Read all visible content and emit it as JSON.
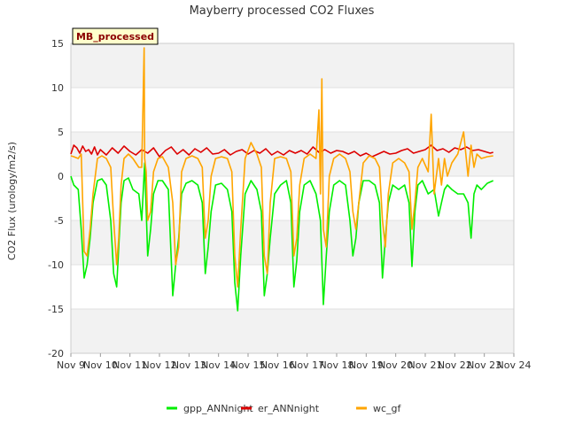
{
  "chart_data": {
    "type": "line",
    "title": "Mayberry processed CO2 Fluxes",
    "xlabel": "",
    "ylabel": "CO2 Flux (urology/m2/s)",
    "badge": "MB_processed",
    "ylim": [
      -20,
      15
    ],
    "xlim": [
      9,
      24
    ],
    "y_ticks": [
      -20,
      -15,
      -10,
      -5,
      0,
      5,
      10,
      15
    ],
    "x_ticks": [
      {
        "value": 9,
        "label": "Nov 9"
      },
      {
        "value": 10,
        "label": "Nov 10"
      },
      {
        "value": 11,
        "label": "Nov 11"
      },
      {
        "value": 12,
        "label": "Nov 12"
      },
      {
        "value": 13,
        "label": "Nov 13"
      },
      {
        "value": 14,
        "label": "Nov 14"
      },
      {
        "value": 15,
        "label": "Nov 15"
      },
      {
        "value": 16,
        "label": "Nov 16"
      },
      {
        "value": 17,
        "label": "Nov 17"
      },
      {
        "value": 18,
        "label": "Nov 18"
      },
      {
        "value": 19,
        "label": "Nov 19"
      },
      {
        "value": 20,
        "label": "Nov 20"
      },
      {
        "value": 21,
        "label": "Nov 21"
      },
      {
        "value": 22,
        "label": "Nov 22"
      },
      {
        "value": 23,
        "label": "Nov 23"
      },
      {
        "value": 24,
        "label": "Nov 24"
      }
    ],
    "grid": "horizontal bands",
    "legend_position": "bottom",
    "series": [
      {
        "name": "gpp_ANNnight",
        "color": "#00ee00",
        "x": [
          9.0,
          9.1,
          9.25,
          9.35,
          9.45,
          9.55,
          9.65,
          9.75,
          9.9,
          10.05,
          10.2,
          10.35,
          10.45,
          10.55,
          10.62,
          10.7,
          10.8,
          10.95,
          11.1,
          11.3,
          11.4,
          11.5,
          11.6,
          11.7,
          11.8,
          11.95,
          12.1,
          12.3,
          12.45,
          12.55,
          12.65,
          12.75,
          12.9,
          13.1,
          13.3,
          13.45,
          13.55,
          13.65,
          13.75,
          13.9,
          14.1,
          14.3,
          14.45,
          14.55,
          14.65,
          14.75,
          14.9,
          15.1,
          15.3,
          15.45,
          15.55,
          15.65,
          15.75,
          15.9,
          16.1,
          16.3,
          16.45,
          16.55,
          16.65,
          16.75,
          16.9,
          17.1,
          17.3,
          17.45,
          17.55,
          17.65,
          17.75,
          17.9,
          18.1,
          18.3,
          18.45,
          18.55,
          18.65,
          18.75,
          18.9,
          19.1,
          19.3,
          19.45,
          19.55,
          19.65,
          19.75,
          19.9,
          20.1,
          20.3,
          20.45,
          20.55,
          20.65,
          20.75,
          20.9,
          21.1,
          21.3,
          21.45,
          21.55,
          21.65,
          21.75,
          21.9,
          22.1,
          22.3,
          22.45,
          22.55,
          22.65,
          22.75,
          22.9,
          23.1,
          23.3
        ],
        "y": [
          0.0,
          -1.0,
          -1.5,
          -6.0,
          -11.5,
          -10.0,
          -7.0,
          -3.0,
          -0.5,
          -0.3,
          -1.0,
          -5.0,
          -11.0,
          -12.5,
          -8.0,
          -3.0,
          -0.5,
          -0.2,
          -1.5,
          -2.0,
          -5.0,
          1.5,
          -9.0,
          -6.0,
          -2.0,
          -0.5,
          -0.5,
          -1.5,
          -13.5,
          -10.0,
          -7.0,
          -2.0,
          -0.8,
          -0.5,
          -1.0,
          -3.0,
          -11.0,
          -8.0,
          -4.0,
          -1.0,
          -0.8,
          -1.5,
          -4.0,
          -12.0,
          -15.2,
          -9.0,
          -2.0,
          -0.5,
          -1.5,
          -4.0,
          -13.5,
          -11.0,
          -7.0,
          -2.0,
          -1.0,
          -0.5,
          -3.0,
          -12.5,
          -9.5,
          -4.0,
          -1.0,
          -0.5,
          -2.0,
          -5.0,
          -14.5,
          -9.0,
          -4.0,
          -1.0,
          -0.5,
          -1.0,
          -5.0,
          -9.0,
          -7.0,
          -3.0,
          -0.5,
          -0.5,
          -1.0,
          -3.0,
          -11.5,
          -7.0,
          -3.0,
          -1.0,
          -1.5,
          -1.0,
          -3.0,
          -10.2,
          -4.0,
          -1.0,
          -0.5,
          -2.0,
          -1.5,
          -4.5,
          -3.0,
          -1.5,
          -1.0,
          -1.5,
          -2.0,
          -2.0,
          -3.0,
          -7.0,
          -2.0,
          -1.0,
          -1.5,
          -0.8,
          -0.5
        ]
      },
      {
        "name": "er_ANNnight",
        "color": "#dd0000",
        "x": [
          9.0,
          9.1,
          9.2,
          9.3,
          9.4,
          9.5,
          9.6,
          9.7,
          9.8,
          9.9,
          10.0,
          10.2,
          10.4,
          10.6,
          10.8,
          11.0,
          11.2,
          11.4,
          11.6,
          11.8,
          12.0,
          12.2,
          12.4,
          12.6,
          12.8,
          13.0,
          13.2,
          13.4,
          13.6,
          13.8,
          14.0,
          14.2,
          14.4,
          14.6,
          14.8,
          15.0,
          15.2,
          15.4,
          15.6,
          15.8,
          16.0,
          16.2,
          16.4,
          16.6,
          16.8,
          17.0,
          17.2,
          17.4,
          17.6,
          17.8,
          18.0,
          18.2,
          18.4,
          18.6,
          18.8,
          19.0,
          19.2,
          19.4,
          19.6,
          19.8,
          20.0,
          20.2,
          20.4,
          20.6,
          20.8,
          21.0,
          21.2,
          21.4,
          21.6,
          21.8,
          22.0,
          22.2,
          22.4,
          22.6,
          22.8,
          23.0,
          23.2,
          23.3
        ],
        "y": [
          2.5,
          3.5,
          3.2,
          2.6,
          3.4,
          2.8,
          3.0,
          2.5,
          3.3,
          2.4,
          3.0,
          2.4,
          3.2,
          2.6,
          3.4,
          2.8,
          2.4,
          3.0,
          2.6,
          3.2,
          2.2,
          2.9,
          3.3,
          2.5,
          3.0,
          2.4,
          3.1,
          2.7,
          3.2,
          2.5,
          2.6,
          3.0,
          2.4,
          2.8,
          3.0,
          2.5,
          2.9,
          2.6,
          3.1,
          2.4,
          2.8,
          2.4,
          2.9,
          2.6,
          2.9,
          2.5,
          3.3,
          2.7,
          3.0,
          2.6,
          2.9,
          2.8,
          2.5,
          2.8,
          2.3,
          2.6,
          2.2,
          2.5,
          2.8,
          2.5,
          2.6,
          2.9,
          3.1,
          2.6,
          2.8,
          3.0,
          3.5,
          2.9,
          3.1,
          2.7,
          3.2,
          3.0,
          3.3,
          2.9,
          3.0,
          2.8,
          2.6,
          2.7
        ]
      },
      {
        "name": "wc_gf",
        "color": "#ffa500",
        "x": [
          9.0,
          9.1,
          9.25,
          9.35,
          9.45,
          9.55,
          9.65,
          9.75,
          9.9,
          10.05,
          10.2,
          10.35,
          10.45,
          10.55,
          10.62,
          10.7,
          10.8,
          10.95,
          11.1,
          11.3,
          11.4,
          11.48,
          11.5,
          11.55,
          11.6,
          11.7,
          11.8,
          11.95,
          12.1,
          12.3,
          12.45,
          12.55,
          12.65,
          12.75,
          12.9,
          13.1,
          13.3,
          13.45,
          13.55,
          13.65,
          13.75,
          13.9,
          14.1,
          14.3,
          14.45,
          14.55,
          14.65,
          14.75,
          14.9,
          15.1,
          15.3,
          15.45,
          15.55,
          15.65,
          15.75,
          15.9,
          16.1,
          16.3,
          16.45,
          16.55,
          16.65,
          16.75,
          16.9,
          17.1,
          17.3,
          17.4,
          17.45,
          17.5,
          17.55,
          17.65,
          17.75,
          17.9,
          18.1,
          18.3,
          18.45,
          18.55,
          18.65,
          18.75,
          18.9,
          19.1,
          19.3,
          19.45,
          19.55,
          19.65,
          19.75,
          19.9,
          20.1,
          20.3,
          20.45,
          20.55,
          20.65,
          20.75,
          20.9,
          21.1,
          21.2,
          21.3,
          21.45,
          21.55,
          21.65,
          21.75,
          21.9,
          22.1,
          22.3,
          22.45,
          22.55,
          22.65,
          22.75,
          22.9,
          23.1,
          23.3
        ],
        "y": [
          2.3,
          2.2,
          2.0,
          2.5,
          -8.5,
          -9.0,
          -6.0,
          -2.0,
          2.0,
          2.3,
          2.0,
          1.0,
          -5.0,
          -10.0,
          -7.0,
          -1.0,
          2.0,
          2.5,
          2.0,
          1.0,
          1.0,
          14.5,
          2.0,
          0.5,
          -5.0,
          -4.0,
          0.5,
          2.0,
          2.2,
          1.0,
          -3.0,
          -10.0,
          -8.0,
          0.5,
          2.0,
          2.3,
          2.0,
          1.0,
          -7.0,
          -5.0,
          0.0,
          2.0,
          2.2,
          2.0,
          0.5,
          -9.0,
          -12.5,
          -6.0,
          2.0,
          3.8,
          2.5,
          1.0,
          -9.0,
          -11.0,
          -3.0,
          2.0,
          2.2,
          2.0,
          0.5,
          -9.0,
          -7.0,
          -1.0,
          2.0,
          2.5,
          2.0,
          7.5,
          -2.0,
          11.0,
          -6.0,
          -8.0,
          0.0,
          2.0,
          2.5,
          2.0,
          0.5,
          -4.0,
          -6.0,
          -3.0,
          1.5,
          2.3,
          2.0,
          1.0,
          -5.0,
          -8.0,
          -2.0,
          1.5,
          2.0,
          1.5,
          0.5,
          -6.0,
          -3.0,
          1.0,
          2.0,
          0.5,
          7.0,
          -2.0,
          2.0,
          -1.0,
          2.0,
          0.0,
          1.5,
          2.5,
          5.0,
          0.0,
          3.5,
          1.0,
          2.5,
          2.0,
          2.2,
          2.3
        ]
      }
    ]
  }
}
